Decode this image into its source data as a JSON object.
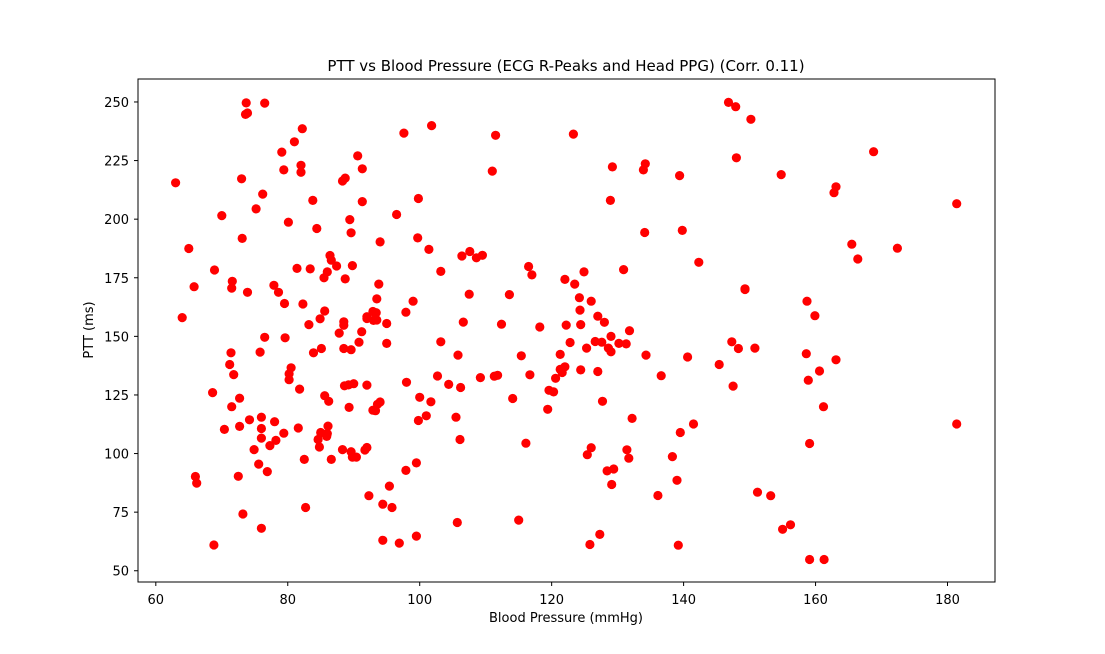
{
  "chart_data": {
    "type": "scatter",
    "title": "PTT vs Blood Pressure (ECG R-Peaks and Head PPG) (Corr. 0.11)",
    "xlabel": "Blood Pressure (mmHg)",
    "ylabel": "PTT (ms)",
    "xlim": [
      57.3,
      187.2
    ],
    "ylim": [
      45.2,
      259.8
    ],
    "xticks": [
      60,
      80,
      100,
      120,
      140,
      160,
      180
    ],
    "yticks": [
      50,
      75,
      100,
      125,
      150,
      175,
      200,
      225,
      250
    ],
    "grid": false,
    "legend": "none",
    "marker_color": "#ff0000",
    "series": [
      {
        "points": [
          [
            63,
            215.5
          ],
          [
            64,
            158
          ],
          [
            65,
            187.5
          ],
          [
            65.8,
            171.2
          ],
          [
            66,
            90.2
          ],
          [
            66.2,
            87.4
          ],
          [
            68.6,
            126
          ],
          [
            68.9,
            178.3
          ],
          [
            68.8,
            61
          ],
          [
            70,
            201.5
          ],
          [
            70.4,
            110.3
          ],
          [
            71.2,
            138
          ],
          [
            71.4,
            143
          ],
          [
            71.6,
            173.5
          ],
          [
            71.5,
            170.6
          ],
          [
            71.5,
            120
          ],
          [
            71.8,
            133.7
          ],
          [
            72.5,
            90.3
          ],
          [
            72.7,
            123.6
          ],
          [
            72.7,
            111.6
          ],
          [
            73,
            217.2
          ],
          [
            73.1,
            191.8
          ],
          [
            73.2,
            74.2
          ],
          [
            73.6,
            244.7
          ],
          [
            73.7,
            249.6
          ],
          [
            73.9,
            245.3
          ],
          [
            73.9,
            168.8
          ],
          [
            74.2,
            114.4
          ],
          [
            74.9,
            101.7
          ],
          [
            75.2,
            204.4
          ],
          [
            75.6,
            95.5
          ],
          [
            75.8,
            143.3
          ],
          [
            76,
            115.5
          ],
          [
            76,
            110.7
          ],
          [
            76,
            106.6
          ],
          [
            76,
            68.1
          ],
          [
            76.2,
            210.7
          ],
          [
            76.5,
            249.5
          ],
          [
            76.5,
            149.6
          ],
          [
            76.9,
            92.3
          ],
          [
            77.3,
            103.4
          ],
          [
            77.9,
            171.8
          ],
          [
            78,
            113.6
          ],
          [
            78.2,
            105.6
          ],
          [
            78.6,
            168.8
          ],
          [
            79.1,
            228.6
          ],
          [
            79.4,
            221
          ],
          [
            79.4,
            108.7
          ],
          [
            79.5,
            164
          ],
          [
            79.6,
            149.4
          ],
          [
            80.1,
            198.7
          ],
          [
            80.2,
            134
          ],
          [
            80.2,
            131.5
          ],
          [
            80.5,
            136.6
          ],
          [
            81,
            233
          ],
          [
            81.4,
            179
          ],
          [
            81.6,
            110.9
          ],
          [
            81.8,
            127.5
          ],
          [
            82,
            220
          ],
          [
            82,
            223
          ],
          [
            82.2,
            238.6
          ],
          [
            82.3,
            163.8
          ],
          [
            82.5,
            97.5
          ],
          [
            82.7,
            77
          ],
          [
            83.2,
            155
          ],
          [
            83.4,
            178.8
          ],
          [
            83.8,
            208
          ],
          [
            83.9,
            143
          ],
          [
            84.4,
            196
          ],
          [
            84.6,
            106
          ],
          [
            84.8,
            102.8
          ],
          [
            84.9,
            157.5
          ],
          [
            85,
            109
          ],
          [
            85.1,
            144.8
          ],
          [
            85.5,
            175
          ],
          [
            85.6,
            160.8
          ],
          [
            85.6,
            124.7
          ],
          [
            86.2,
            122.3
          ],
          [
            86.1,
            111.7
          ],
          [
            85.9,
            107.3
          ],
          [
            86,
            108.5
          ],
          [
            86,
            177.5
          ],
          [
            86.4,
            184.5
          ],
          [
            86.6,
            182.5
          ],
          [
            86.6,
            97.5
          ],
          [
            87.4,
            180
          ],
          [
            87.8,
            151.4
          ],
          [
            88.3,
            216.3
          ],
          [
            88.3,
            101.7
          ],
          [
            88.6,
            128.9
          ],
          [
            88.7,
            217.5
          ],
          [
            88.5,
            156.2
          ],
          [
            88.5,
            154.7
          ],
          [
            88.5,
            144.8
          ],
          [
            88.7,
            174.5
          ],
          [
            89.2,
            129.3
          ],
          [
            89.3,
            119.7
          ],
          [
            89.4,
            199.8
          ],
          [
            89.6,
            194.2
          ],
          [
            89.6,
            144.3
          ],
          [
            89.6,
            100.8
          ],
          [
            89.8,
            180.2
          ],
          [
            89.8,
            98.5
          ],
          [
            90,
            129.8
          ],
          [
            90.4,
            98.5
          ],
          [
            90.6,
            227
          ],
          [
            90.8,
            147.5
          ],
          [
            91.3,
            221.5
          ],
          [
            91.3,
            207.5
          ],
          [
            91.2,
            152
          ],
          [
            91.7,
            101.5
          ],
          [
            92,
            102.6
          ],
          [
            92,
            129.2
          ],
          [
            92,
            158.4
          ],
          [
            92,
            157.6
          ],
          [
            92.3,
            82
          ],
          [
            92.9,
            160.6
          ],
          [
            93,
            156.8
          ],
          [
            92.9,
            118.5
          ],
          [
            93.3,
            118.3
          ],
          [
            93.4,
            160.1
          ],
          [
            93.5,
            166
          ],
          [
            93.5,
            157
          ],
          [
            93.6,
            121
          ],
          [
            93.8,
            172.3
          ],
          [
            94,
            122
          ],
          [
            94,
            190.3
          ],
          [
            94.4,
            78.4
          ],
          [
            94.4,
            63
          ],
          [
            95,
            155.5
          ],
          [
            95,
            147
          ],
          [
            95.4,
            86.1
          ],
          [
            95.8,
            77
          ],
          [
            96.5,
            202
          ],
          [
            96.9,
            61.8
          ],
          [
            97.6,
            236.7
          ],
          [
            97.9,
            160.3
          ],
          [
            97.9,
            92.8
          ],
          [
            98,
            130.4
          ],
          [
            99,
            165
          ],
          [
            99.5,
            96
          ],
          [
            99.5,
            64.8
          ],
          [
            99.7,
            192
          ],
          [
            99.8,
            208.8
          ],
          [
            99.8,
            114.1
          ],
          [
            100,
            124
          ],
          [
            101,
            116.1
          ],
          [
            101.4,
            187.1
          ],
          [
            101.8,
            239.9
          ],
          [
            101.7,
            122.1
          ],
          [
            102.7,
            133.1
          ],
          [
            103.2,
            147.7
          ],
          [
            103.2,
            177.7
          ],
          [
            104.4,
            129.5
          ],
          [
            105.5,
            115.5
          ],
          [
            105.7,
            70.6
          ],
          [
            105.8,
            142
          ],
          [
            106.1,
            106
          ],
          [
            106.2,
            128.2
          ],
          [
            106.4,
            184.3
          ],
          [
            106.6,
            156.1
          ],
          [
            107.5,
            168
          ],
          [
            107.6,
            186.2
          ],
          [
            108.6,
            183.5
          ],
          [
            109.5,
            184.6
          ],
          [
            109.2,
            132.4
          ],
          [
            111,
            220.5
          ],
          [
            111.3,
            133
          ],
          [
            111.5,
            235.8
          ],
          [
            111.8,
            133.4
          ],
          [
            112.4,
            155.2
          ],
          [
            113.6,
            167.8
          ],
          [
            114.1,
            123.5
          ],
          [
            115,
            71.6
          ],
          [
            115.4,
            141.7
          ],
          [
            116.1,
            104.4
          ],
          [
            116.5,
            179.8
          ],
          [
            116.7,
            133.6
          ],
          [
            117,
            176.2
          ],
          [
            118.2,
            154
          ],
          [
            119.4,
            118.9
          ],
          [
            119.6,
            127
          ],
          [
            120.3,
            126.3
          ],
          [
            120.6,
            132.1
          ],
          [
            121.3,
            135.9
          ],
          [
            121.3,
            142.3
          ],
          [
            121.6,
            134.6
          ],
          [
            122,
            174.3
          ],
          [
            122.2,
            154.8
          ],
          [
            122,
            137
          ],
          [
            122.8,
            147.4
          ],
          [
            123.3,
            236.3
          ],
          [
            123.5,
            172.3
          ],
          [
            124.2,
            166.5
          ],
          [
            124.4,
            155
          ],
          [
            124.3,
            161.2
          ],
          [
            124.4,
            135.7
          ],
          [
            124.9,
            177.5
          ],
          [
            125.3,
            145
          ],
          [
            125.4,
            99.5
          ],
          [
            125.8,
            61.2
          ],
          [
            126,
            102.5
          ],
          [
            126,
            165
          ],
          [
            126.6,
            147.8
          ],
          [
            127,
            158.6
          ],
          [
            127,
            135
          ],
          [
            127.3,
            65.5
          ],
          [
            127.6,
            147.5
          ],
          [
            127.7,
            122.3
          ],
          [
            128,
            156
          ],
          [
            128.4,
            92.6
          ],
          [
            128.6,
            145
          ],
          [
            128.9,
            208
          ],
          [
            129,
            150
          ],
          [
            129,
            143.4
          ],
          [
            129.1,
            86.8
          ],
          [
            129.2,
            222.3
          ],
          [
            129.4,
            93.4
          ],
          [
            130.2,
            147
          ],
          [
            130.9,
            178.5
          ],
          [
            131.3,
            146.8
          ],
          [
            131.4,
            101.6
          ],
          [
            131.7,
            98
          ],
          [
            131.8,
            152.4
          ],
          [
            132.2,
            115
          ],
          [
            133.9,
            221
          ],
          [
            134.1,
            194.3
          ],
          [
            134.2,
            223.6
          ],
          [
            134.3,
            142
          ],
          [
            136.1,
            82.1
          ],
          [
            136.6,
            133.2
          ],
          [
            138.3,
            98.7
          ],
          [
            139,
            88.6
          ],
          [
            139.2,
            60.9
          ],
          [
            139.4,
            218.6
          ],
          [
            139.5,
            109
          ],
          [
            139.8,
            195.2
          ],
          [
            140.6,
            141.2
          ],
          [
            141.5,
            112.6
          ],
          [
            142.3,
            181.6
          ],
          [
            145.4,
            138
          ],
          [
            146.8,
            249.8
          ],
          [
            147.3,
            147.7
          ],
          [
            147.5,
            128.8
          ],
          [
            147.9,
            248
          ],
          [
            148,
            226.2
          ],
          [
            148.3,
            144.8
          ],
          [
            149.3,
            170.3
          ],
          [
            149.3,
            170
          ],
          [
            150.2,
            242.6
          ],
          [
            150.8,
            145
          ],
          [
            151.2,
            83.5
          ],
          [
            153.2,
            82
          ],
          [
            154.8,
            219
          ],
          [
            155,
            67.7
          ],
          [
            156.2,
            69.6
          ],
          [
            158.6,
            142.6
          ],
          [
            158.7,
            165
          ],
          [
            158.9,
            131.3
          ],
          [
            159.1,
            104.3
          ],
          [
            159.1,
            54.8
          ],
          [
            159.9,
            158.8
          ],
          [
            160.6,
            135.2
          ],
          [
            161.2,
            120
          ],
          [
            161.3,
            54.8
          ],
          [
            162.8,
            211.3
          ],
          [
            163.1,
            213.8
          ],
          [
            163.1,
            140
          ],
          [
            165.5,
            189.3
          ],
          [
            166.4,
            183
          ],
          [
            168.8,
            228.8
          ],
          [
            172.4,
            187.6
          ],
          [
            181.4,
            206.6
          ],
          [
            181.4,
            112.6
          ]
        ]
      }
    ]
  }
}
